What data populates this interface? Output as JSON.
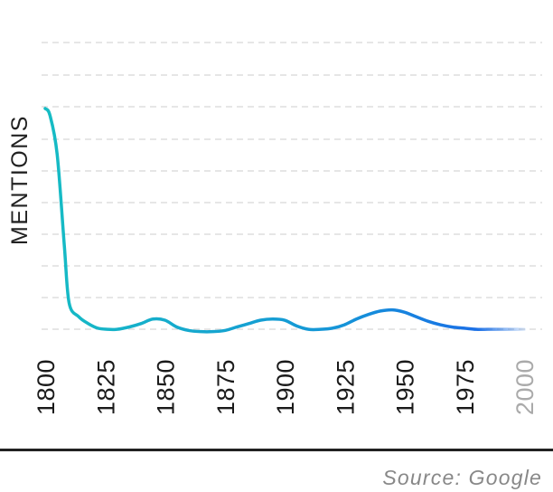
{
  "chart_data": {
    "type": "line",
    "title": "",
    "xlabel": "",
    "ylabel": "MENTIONS",
    "xlim": [
      1800,
      2000
    ],
    "ylim": [
      0,
      100
    ],
    "x_ticks": [
      "1800",
      "1825",
      "1850",
      "1875",
      "1900",
      "1925",
      "1950",
      "1975",
      "2000"
    ],
    "faded_ticks": [
      "2000"
    ],
    "grid": true,
    "legend": "none",
    "series": [
      {
        "x": [
          1800,
          1802,
          1805,
          1808,
          1810,
          1814,
          1818,
          1822,
          1826,
          1830,
          1835,
          1840,
          1845,
          1850,
          1855,
          1860,
          1865,
          1870,
          1875,
          1880,
          1885,
          1890,
          1895,
          1900,
          1905,
          1910,
          1915,
          1920,
          1925,
          1930,
          1935,
          1940,
          1945,
          1950,
          1955,
          1960,
          1965,
          1970,
          1975,
          1980,
          1985,
          1990,
          1995,
          2000
        ],
        "values": [
          100,
          97,
          80,
          40,
          15,
          9,
          6,
          4,
          3.5,
          3.5,
          4.5,
          6,
          8,
          7.5,
          4.5,
          3,
          2.5,
          2.5,
          3,
          4.5,
          6,
          7.5,
          8,
          7.5,
          5,
          3.5,
          3.5,
          4,
          5.5,
          8,
          10,
          11.5,
          12,
          11,
          9,
          7,
          5.5,
          4.5,
          4,
          3.5,
          3.5,
          3.5,
          3.5,
          3.5
        ]
      }
    ],
    "colors": {
      "line_start": "#16bcc4",
      "line_end": "#1a6fe6",
      "grid": "#dddddd",
      "tick": "#1a1a1a",
      "faded_tick": "#aaaaaa"
    }
  },
  "source": "Source: Google"
}
